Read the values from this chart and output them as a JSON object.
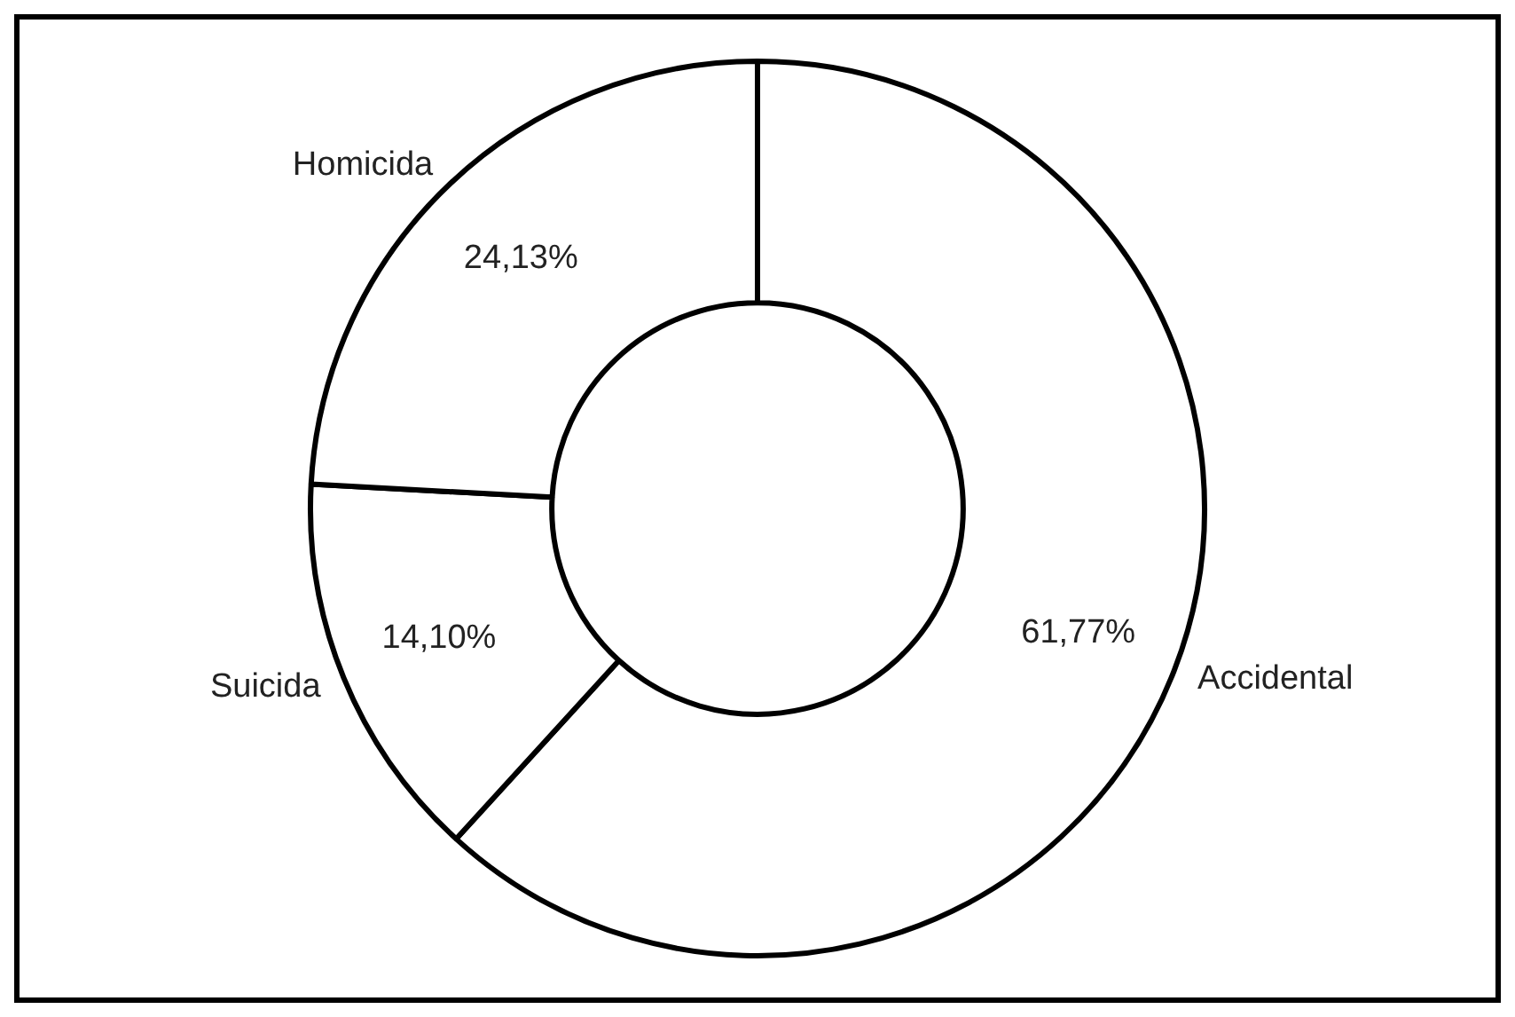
{
  "chart_data": {
    "type": "donut",
    "categories": [
      "Accidental",
      "Suicida",
      "Homicida"
    ],
    "values": [
      61.77,
      14.1,
      24.13
    ],
    "colors": [
      "#ffffff",
      "#ffffff",
      "#ffffff"
    ],
    "value_labels": [
      "61,77%",
      "14,10%",
      "24,13%"
    ],
    "legend": false
  }
}
